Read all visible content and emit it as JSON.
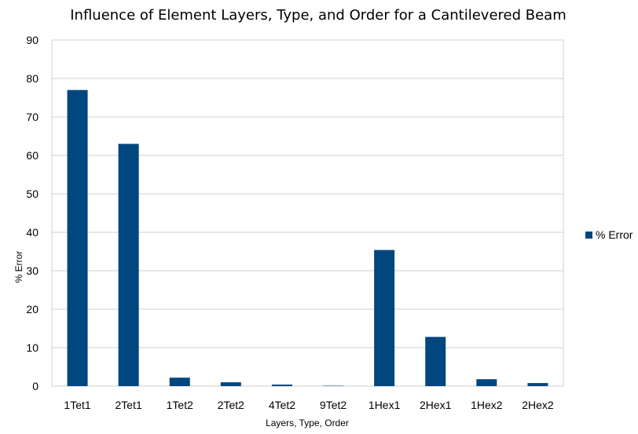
{
  "chart_data": {
    "type": "bar",
    "title": "Influence of Element Layers, Type, and Order for a Cantilevered Beam",
    "xlabel": "Layers, Type, Order",
    "ylabel": "% Error",
    "ylim": [
      0,
      90
    ],
    "yticks": [
      0,
      10,
      20,
      30,
      40,
      50,
      60,
      70,
      80,
      90
    ],
    "grid": true,
    "legend_position": "right",
    "categories": [
      "1Tet1",
      "2Tet1",
      "1Tet2",
      "2Tet2",
      "4Tet2",
      "9Tet2",
      "1Hex1",
      "2Hex1",
      "1Hex2",
      "2Hex2"
    ],
    "series": [
      {
        "name": "% Error",
        "color": "#00467f",
        "values": [
          77,
          63,
          2.2,
          1.0,
          0.4,
          0.1,
          35.4,
          12.8,
          1.8,
          0.8
        ]
      }
    ]
  }
}
